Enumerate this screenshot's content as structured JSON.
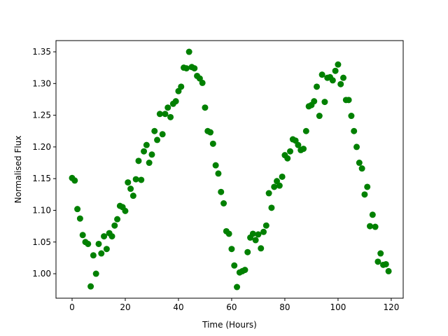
{
  "chart_data": {
    "type": "scatter",
    "xlabel": "Time (Hours)",
    "ylabel": "Normalised Flux",
    "color": "#008000",
    "x": [
      0,
      1,
      2,
      3,
      4,
      5,
      6,
      7,
      8,
      9,
      10,
      11,
      12,
      13,
      14,
      15,
      16,
      17,
      18,
      19,
      20,
      21,
      22,
      23,
      24,
      25,
      26,
      27,
      28,
      29,
      30,
      31,
      32,
      33,
      34,
      35,
      36,
      37,
      38,
      39,
      40,
      41,
      42,
      43,
      44,
      45,
      46,
      47,
      48,
      49,
      50,
      51,
      52,
      53,
      54,
      55,
      56,
      57,
      58,
      59,
      60,
      61,
      62,
      63,
      64,
      65,
      66,
      67,
      68,
      69,
      70,
      71,
      72,
      73,
      74,
      75,
      76,
      77,
      78,
      79,
      80,
      81,
      82,
      83,
      84,
      85,
      86,
      87,
      88,
      89,
      90,
      91,
      92,
      93,
      94,
      95,
      96,
      97,
      98,
      99,
      100,
      101,
      102,
      103,
      104,
      105,
      106,
      107,
      108,
      109,
      110,
      111,
      112,
      113,
      114,
      115,
      116,
      117,
      118,
      119
    ],
    "values": [
      1.151,
      1.147,
      1.102,
      1.087,
      1.061,
      1.05,
      1.047,
      0.98,
      1.029,
      1.0,
      1.047,
      1.032,
      1.059,
      1.039,
      1.064,
      1.059,
      1.076,
      1.086,
      1.107,
      1.105,
      1.099,
      1.144,
      1.134,
      1.123,
      1.149,
      1.178,
      1.148,
      1.193,
      1.203,
      1.175,
      1.188,
      1.225,
      1.211,
      1.252,
      1.22,
      1.252,
      1.262,
      1.247,
      1.268,
      1.272,
      1.288,
      1.295,
      1.325,
      1.324,
      1.35,
      1.326,
      1.324,
      1.312,
      1.308,
      1.301,
      1.262,
      1.225,
      1.223,
      1.205,
      1.171,
      1.158,
      1.129,
      1.111,
      1.067,
      1.063,
      1.039,
      1.013,
      0.979,
      1.002,
      1.004,
      1.006,
      1.034,
      1.057,
      1.063,
      1.053,
      1.062,
      1.04,
      1.066,
      1.076,
      1.127,
      1.104,
      1.137,
      1.146,
      1.139,
      1.153,
      1.187,
      1.182,
      1.193,
      1.212,
      1.21,
      1.203,
      1.195,
      1.197,
      1.225,
      1.264,
      1.266,
      1.272,
      1.295,
      1.249,
      1.314,
      1.271,
      1.309,
      1.31,
      1.305,
      1.32,
      1.33,
      1.299,
      1.309,
      1.274,
      1.274,
      1.249,
      1.225,
      1.2,
      1.175,
      1.166,
      1.125,
      1.137,
      1.075,
      1.093,
      1.074,
      1.019,
      1.032,
      1.014,
      1.015,
      1.004
    ],
    "xlim": [
      -6.05,
      124.5
    ],
    "ylim": [
      0.9614,
      1.3677
    ],
    "xticks": [
      0,
      20,
      40,
      60,
      80,
      100,
      120
    ],
    "yticks": [
      {
        "value": 1.0,
        "label": "1.00"
      },
      1.05,
      {
        "value": 1.1,
        "label": "1.10"
      },
      1.15,
      {
        "value": 1.2,
        "label": "1.20"
      },
      1.25,
      {
        "value": 1.3,
        "label": "1.30"
      },
      1.35
    ]
  }
}
